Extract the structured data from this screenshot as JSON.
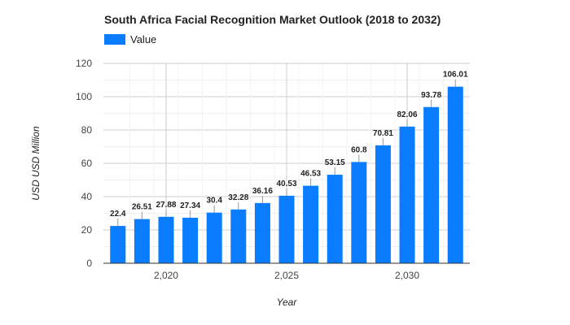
{
  "chart_data": {
    "type": "bar",
    "title": "South Africa Facial Recognition Market Outlook (2018 to 2032)",
    "xlabel": "Year",
    "ylabel": "USD USD Million",
    "legend": {
      "position": "top-left",
      "entries": [
        "Value"
      ]
    },
    "series": [
      {
        "name": "Value",
        "color": "#0a7cff",
        "x": [
          2018,
          2019,
          2020,
          2021,
          2022,
          2023,
          2024,
          2025,
          2026,
          2027,
          2028,
          2029,
          2030,
          2031,
          2032
        ],
        "values": [
          22.4,
          26.51,
          27.88,
          27.34,
          30.4,
          32.28,
          36.16,
          40.53,
          46.53,
          53.15,
          60.8,
          70.81,
          82.06,
          93.78,
          106.01
        ],
        "data_labels": [
          "22.4",
          "26.51",
          "27.88",
          "27.34",
          "30.4",
          "32.28",
          "36.16",
          "40.53",
          "46.53",
          "53.15",
          "60.8",
          "70.81",
          "82.06",
          "93.78",
          "106.01"
        ]
      }
    ],
    "xlim": [
      2017.4,
      2032.6
    ],
    "ylim": [
      0,
      120
    ],
    "y_ticks": [
      0,
      20,
      40,
      60,
      80,
      100,
      120
    ],
    "y_tick_labels": [
      "0",
      "20",
      "40",
      "60",
      "80",
      "100",
      "120"
    ],
    "x_ticks": [
      2020,
      2025,
      2030
    ],
    "x_tick_labels": [
      "2,020",
      "2,025",
      "2,030"
    ],
    "grid": true
  }
}
